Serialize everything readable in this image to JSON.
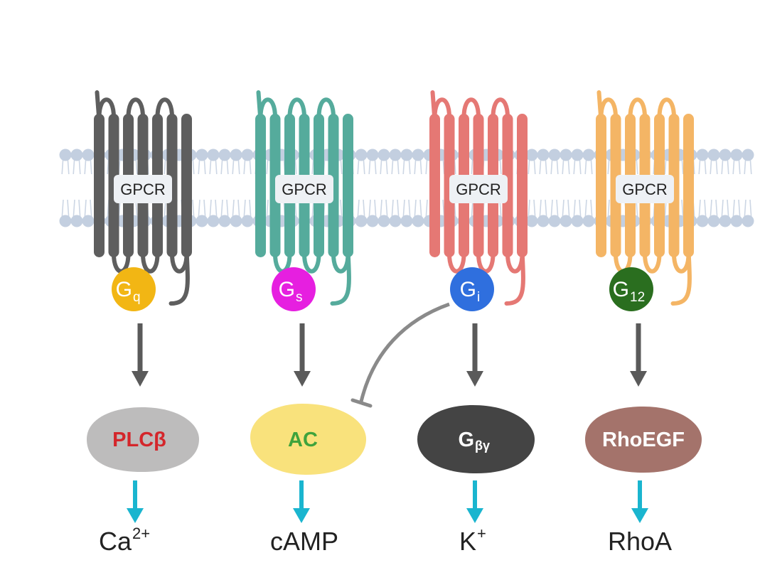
{
  "colors": {
    "membrane": "#c3cfe0",
    "membrane_tail": "#ccd6e4",
    "arrow_gray": "#5a5a5a",
    "arrow_cyan": "#1ab5cf",
    "inhibit_line": "#8a8a8a"
  },
  "pathways": [
    {
      "receptor_label": "GPCR",
      "receptor_color": "#5e5e5e",
      "g_protein": {
        "main": "G",
        "sub": "q",
        "color": "#f2b614"
      },
      "effector": {
        "main": "PLCβ",
        "sub": "",
        "fill": "#bdbcbc",
        "text_color": "#d4262b"
      },
      "output": {
        "main": "Ca",
        "sup": "2+"
      }
    },
    {
      "receptor_label": "GPCR",
      "receptor_color": "#55ab9c",
      "g_protein": {
        "main": "G",
        "sub": "s",
        "color": "#e61fe0"
      },
      "effector": {
        "main": "AC",
        "sub": "",
        "fill": "#f9e27c",
        "text_color": "#3fa33c"
      },
      "output": {
        "main": "cAMP",
        "sup": ""
      }
    },
    {
      "receptor_label": "GPCR",
      "receptor_color": "#e57874",
      "g_protein": {
        "main": "G",
        "sub": "i",
        "color": "#2f6fde"
      },
      "effector": {
        "main": "G",
        "sub": "βγ",
        "fill": "#444444",
        "text_color": "#ffffff"
      },
      "output": {
        "main": "K",
        "sup": "+"
      }
    },
    {
      "receptor_label": "GPCR",
      "receptor_color": "#f4b565",
      "g_protein": {
        "main": "G",
        "sub": "12",
        "color": "#2a6e1f"
      },
      "effector": {
        "main": "RhoEGF",
        "sub": "",
        "fill": "#a4736b",
        "text_color": "#ffffff"
      },
      "output": {
        "main": "RhoA",
        "sup": ""
      }
    }
  ]
}
